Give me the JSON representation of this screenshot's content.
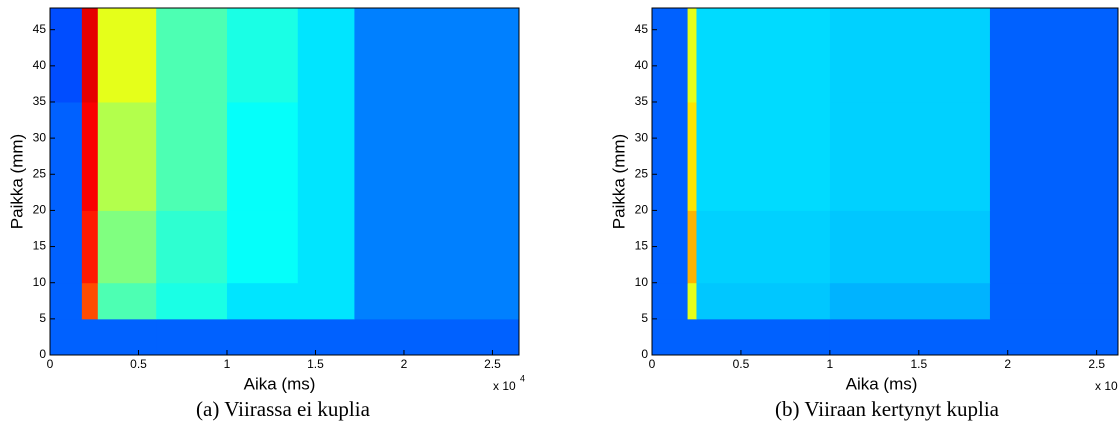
{
  "chart_data": [
    {
      "type": "heatmap",
      "xlabel": "Aika (ms)",
      "ylabel": "Paikka (mm)",
      "caption": "(a) Viirassa ei kuplia",
      "x_multiplier": "x 10",
      "x_multiplier_exponent": "4",
      "xlim": [
        0,
        2.65
      ],
      "ylim": [
        0,
        48
      ],
      "xticks": [
        0,
        0.5,
        1,
        1.5,
        2,
        2.5
      ],
      "yticks": [
        0,
        5,
        10,
        15,
        20,
        25,
        30,
        35,
        40,
        45
      ],
      "colormap": "jet",
      "zlim": [
        0,
        1
      ],
      "x_edges": [
        0,
        0.18,
        0.27,
        0.6,
        1.0,
        1.4,
        1.72,
        2.65
      ],
      "y_edges": [
        0,
        5,
        10,
        20,
        35,
        48
      ],
      "z": [
        [
          0.22,
          0.22,
          0.22,
          0.22,
          0.22,
          0.22,
          0.22
        ],
        [
          0.22,
          0.8,
          0.45,
          0.4,
          0.35,
          0.35,
          0.25
        ],
        [
          0.22,
          0.85,
          0.5,
          0.42,
          0.38,
          0.35,
          0.25
        ],
        [
          0.22,
          0.88,
          0.55,
          0.45,
          0.38,
          0.35,
          0.25
        ],
        [
          0.2,
          0.9,
          0.6,
          0.45,
          0.4,
          0.35,
          0.25
        ]
      ]
    },
    {
      "type": "heatmap",
      "xlabel": "Aika (ms)",
      "ylabel": "Paikka (mm)",
      "caption": "(b) Viiraan kertynyt kuplia",
      "x_multiplier": "x 10",
      "xlim": [
        0,
        2.62
      ],
      "ylim": [
        0,
        48
      ],
      "xticks": [
        0,
        0.5,
        1,
        1.5,
        2,
        2.5
      ],
      "yticks": [
        0,
        5,
        10,
        15,
        20,
        25,
        30,
        35,
        40,
        45
      ],
      "colormap": "jet",
      "zlim": [
        0,
        1
      ],
      "x_edges": [
        0,
        0.2,
        0.25,
        1.0,
        1.9,
        2.62
      ],
      "y_edges": [
        0,
        5,
        10,
        20,
        35,
        48
      ],
      "z": [
        [
          0.22,
          0.22,
          0.22,
          0.22,
          0.22
        ],
        [
          0.22,
          0.6,
          0.32,
          0.3,
          0.22
        ],
        [
          0.22,
          0.7,
          0.33,
          0.32,
          0.22
        ],
        [
          0.22,
          0.65,
          0.34,
          0.33,
          0.22
        ],
        [
          0.22,
          0.6,
          0.34,
          0.33,
          0.22
        ]
      ]
    }
  ]
}
